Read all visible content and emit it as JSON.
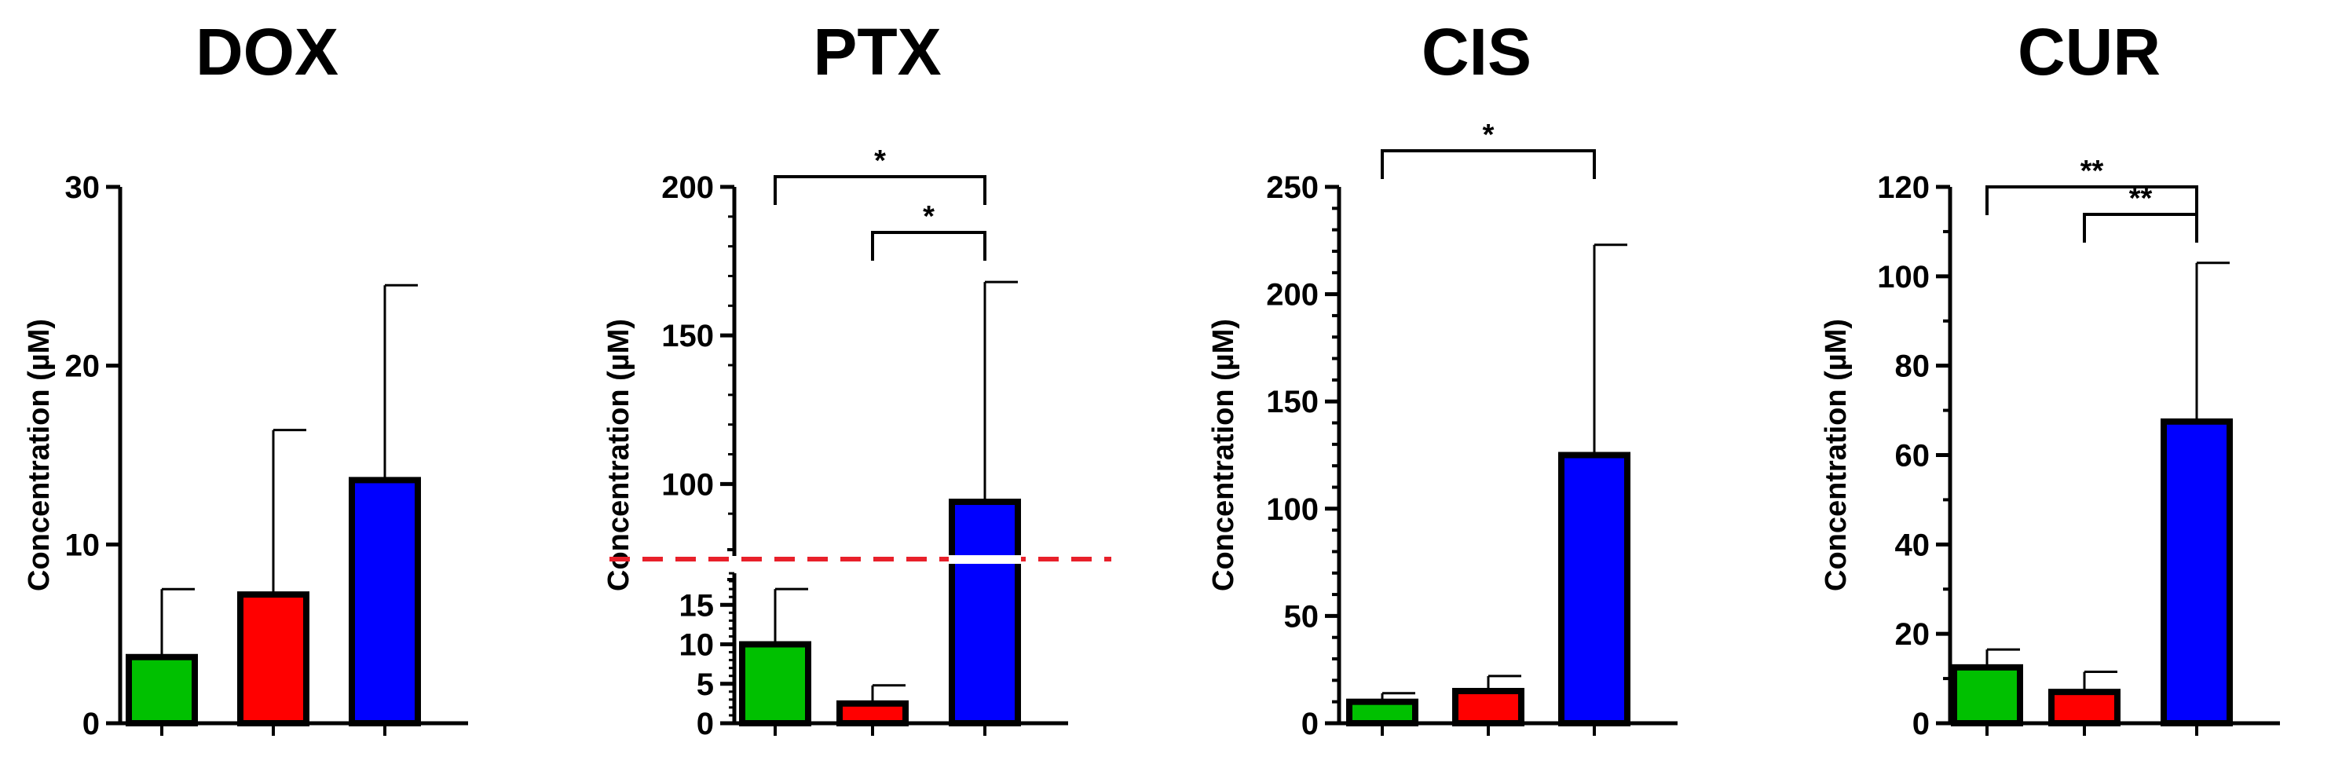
{
  "chart_data": [
    {
      "type": "bar",
      "title": "DOX",
      "ylabel": "Concentration (µM)",
      "xlabel": "",
      "categories": [
        "green",
        "red",
        "blue"
      ],
      "colors": [
        "#00c000",
        "#ff0000",
        "#0000ff"
      ],
      "values": [
        3.7,
        7.2,
        13.6
      ],
      "errors": [
        3.8,
        9.2,
        10.9
      ],
      "ylim": [
        0,
        30
      ],
      "yticks": [
        0,
        10,
        20,
        30
      ],
      "tick_labels": [
        "0",
        "10",
        "20",
        "30"
      ],
      "minor_per_major": 0,
      "broken_axis": false,
      "significance": []
    },
    {
      "type": "bar",
      "title": "PTX",
      "ylabel": "Concentration (µM)",
      "xlabel": "",
      "categories": [
        "green",
        "red",
        "blue"
      ],
      "colors": [
        "#00c000",
        "#ff0000",
        "#0000ff"
      ],
      "values": [
        10,
        2.5,
        94
      ],
      "errors": [
        7,
        2.3,
        74
      ],
      "ylim": [
        0,
        200
      ],
      "yticks": [
        0,
        5,
        10,
        15,
        100,
        150,
        200
      ],
      "tick_labels": [
        "0",
        "5",
        "10",
        "15",
        "100",
        "150",
        "200"
      ],
      "minor_per_major": 0,
      "broken_axis": true,
      "lower_range": [
        0,
        20
      ],
      "upper_range": [
        80,
        200
      ],
      "significance": [
        {
          "from": 0,
          "to": 2,
          "label": "*"
        },
        {
          "from": 1,
          "to": 2,
          "label": "*"
        }
      ]
    },
    {
      "type": "bar",
      "title": "CIS",
      "ylabel": "Concentration (µM)",
      "xlabel": "",
      "categories": [
        "green",
        "red",
        "blue"
      ],
      "colors": [
        "#00c000",
        "#ff0000",
        "#0000ff"
      ],
      "values": [
        10,
        15,
        125
      ],
      "errors": [
        4,
        7,
        98
      ],
      "ylim": [
        0,
        250
      ],
      "yticks": [
        0,
        50,
        100,
        150,
        200,
        250
      ],
      "tick_labels": [
        "0",
        "50",
        "100",
        "150",
        "200",
        "250"
      ],
      "minor_per_major": 4,
      "broken_axis": false,
      "significance": [
        {
          "from": 0,
          "to": 2,
          "label": "*"
        }
      ]
    },
    {
      "type": "bar",
      "title": "CUR",
      "ylabel": "Concentration (µM)",
      "xlabel": "",
      "categories": [
        "green",
        "red",
        "blue"
      ],
      "colors": [
        "#00c000",
        "#ff0000",
        "#0000ff"
      ],
      "values": [
        12.5,
        7,
        67.5
      ],
      "errors": [
        4,
        4.5,
        35.5
      ],
      "ylim": [
        0,
        120
      ],
      "yticks": [
        0,
        20,
        40,
        60,
        80,
        100,
        120
      ],
      "tick_labels": [
        "0",
        "20",
        "40",
        "60",
        "80",
        "100",
        "120"
      ],
      "minor_per_major": 1,
      "broken_axis": false,
      "significance": [
        {
          "from": 0,
          "to": 2,
          "label": "**"
        },
        {
          "from": 1,
          "to": 2,
          "label": "**"
        }
      ]
    }
  ]
}
